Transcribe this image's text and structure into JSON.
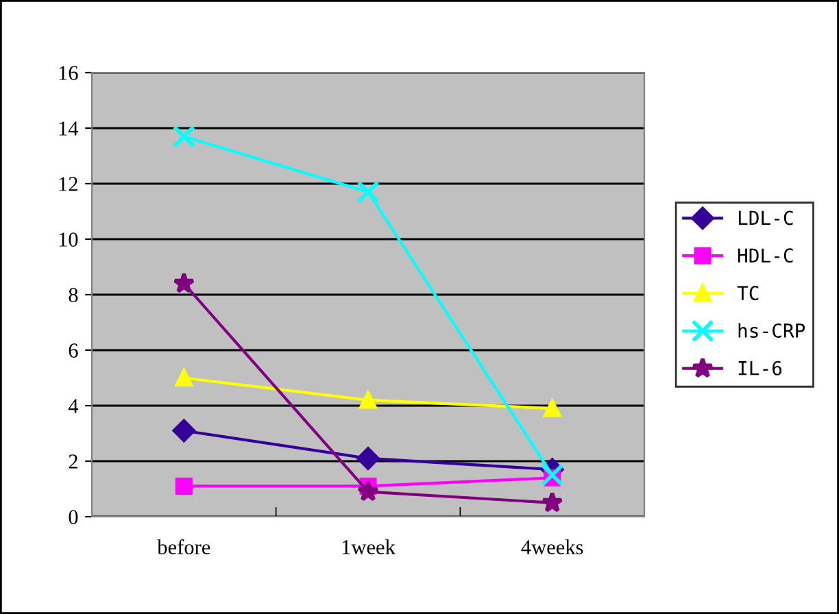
{
  "chart_data": {
    "type": "line",
    "categories": [
      "before",
      "1week",
      "4weeks"
    ],
    "series": [
      {
        "name": "LDL-C",
        "color": "#330099",
        "marker": "diamond",
        "values": [
          3.1,
          2.1,
          1.7
        ]
      },
      {
        "name": "HDL-C",
        "color": "#ff00ff",
        "marker": "square",
        "values": [
          1.1,
          1.1,
          1.4
        ]
      },
      {
        "name": "TC",
        "color": "#ffff00",
        "marker": "triangle",
        "values": [
          5.0,
          4.2,
          3.9
        ]
      },
      {
        "name": "hs-CRP",
        "color": "#00ffff",
        "marker": "cross",
        "values": [
          13.7,
          11.7,
          1.5
        ]
      },
      {
        "name": "IL-6",
        "color": "#800080",
        "marker": "star",
        "values": [
          8.4,
          0.9,
          0.5
        ]
      }
    ],
    "ylim": [
      0,
      16
    ],
    "yticks": [
      0,
      2,
      4,
      6,
      8,
      10,
      12,
      14,
      16
    ],
    "grid": "y",
    "legend": "right"
  }
}
